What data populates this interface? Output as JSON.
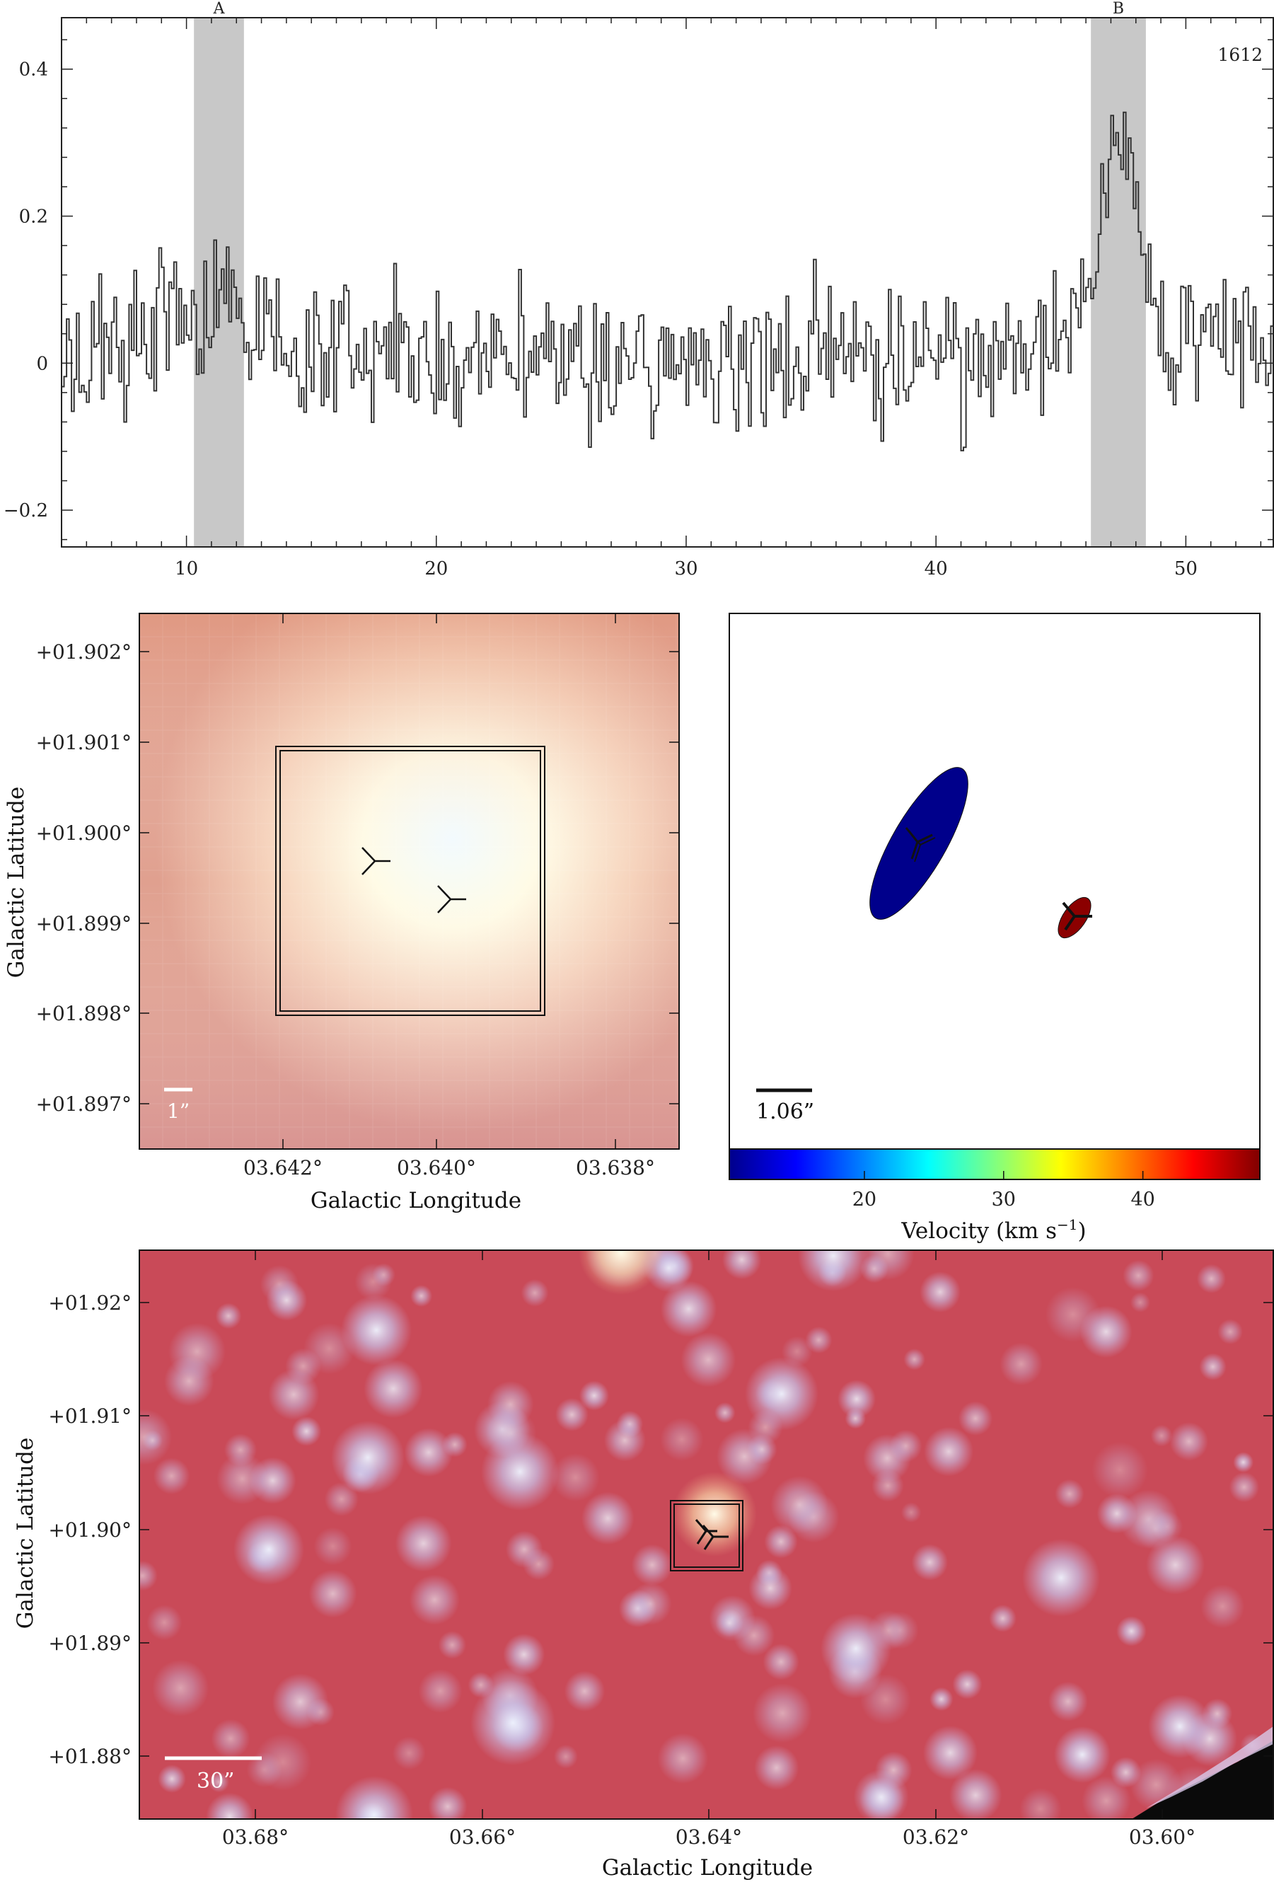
{
  "spectrum": {
    "chart_data": {
      "type": "line",
      "style": "step",
      "annotation": "1612",
      "xlim": [
        5,
        53.5
      ],
      "ylim": [
        -0.25,
        0.47
      ],
      "xticks": [
        "10",
        "20",
        "30",
        "40",
        "50"
      ],
      "yticks": [
        "0.4",
        "0.2",
        "0",
        "−0.2"
      ],
      "ytick_values": [
        0.4,
        0.2,
        0,
        -0.2
      ],
      "xtick_values": [
        10,
        20,
        30,
        40,
        50
      ],
      "bands": [
        {
          "label": "A",
          "from": 10.3,
          "to": 12.3
        },
        {
          "label": "B",
          "from": 46.2,
          "to": 48.4
        }
      ],
      "profile_anchors": [
        [
          5,
          0.02
        ],
        [
          8,
          0.02
        ],
        [
          10.3,
          0.06
        ],
        [
          11.2,
          0.09
        ],
        [
          12.3,
          0.05
        ],
        [
          14,
          0.02
        ],
        [
          20,
          0.01
        ],
        [
          30,
          0.0
        ],
        [
          40,
          0.01
        ],
        [
          44,
          0.02
        ],
        [
          45.5,
          0.06
        ],
        [
          46.3,
          0.15
        ],
        [
          46.8,
          0.25
        ],
        [
          47.2,
          0.33
        ],
        [
          47.6,
          0.3
        ],
        [
          48.0,
          0.22
        ],
        [
          48.5,
          0.12
        ],
        [
          49.3,
          0.03
        ],
        [
          53.5,
          0.02
        ]
      ],
      "noise_sigma": 0.085,
      "channel_width": 0.1
    }
  },
  "velocity_map": {
    "scale_label": "1.06”",
    "colorbar": {
      "label": "Velocity (km s",
      "label_sup": "−1",
      "label_end": ")",
      "ticks": [
        "20",
        "30",
        "40"
      ],
      "tick_values": [
        20,
        30,
        40
      ],
      "range": [
        10.3,
        48.4
      ],
      "colors": [
        "#00008b",
        "#0000ff",
        "#0080ff",
        "#00ffff",
        "#80ff80",
        "#ffff00",
        "#ff8000",
        "#ff0000",
        "#800000"
      ]
    },
    "components": [
      {
        "band": "A",
        "velocity": 11.2,
        "color": "#00008b"
      },
      {
        "band": "B",
        "velocity": 47.2,
        "color": "#8b0000"
      }
    ]
  },
  "zoom_image": {
    "scale_label": "1”",
    "xlabel": "Galactic Longitude",
    "ylabel": "Galactic Latitude",
    "xticks": [
      "03.642°",
      "03.640°",
      "03.638°"
    ],
    "yticks": [
      "+01.902°",
      "+01.901°",
      "+01.900°",
      "+01.899°",
      "+01.898°",
      "+01.897°"
    ]
  },
  "wide_image": {
    "scale_label": "30”",
    "xlabel": "Galactic Longitude",
    "ylabel": "Galactic Latitude",
    "xticks": [
      "03.68°",
      "03.66°",
      "03.64°",
      "03.62°",
      "03.60°"
    ],
    "yticks": [
      "+01.92°",
      "+01.91°",
      "+01.90°",
      "+01.89°",
      "+01.88°"
    ]
  }
}
